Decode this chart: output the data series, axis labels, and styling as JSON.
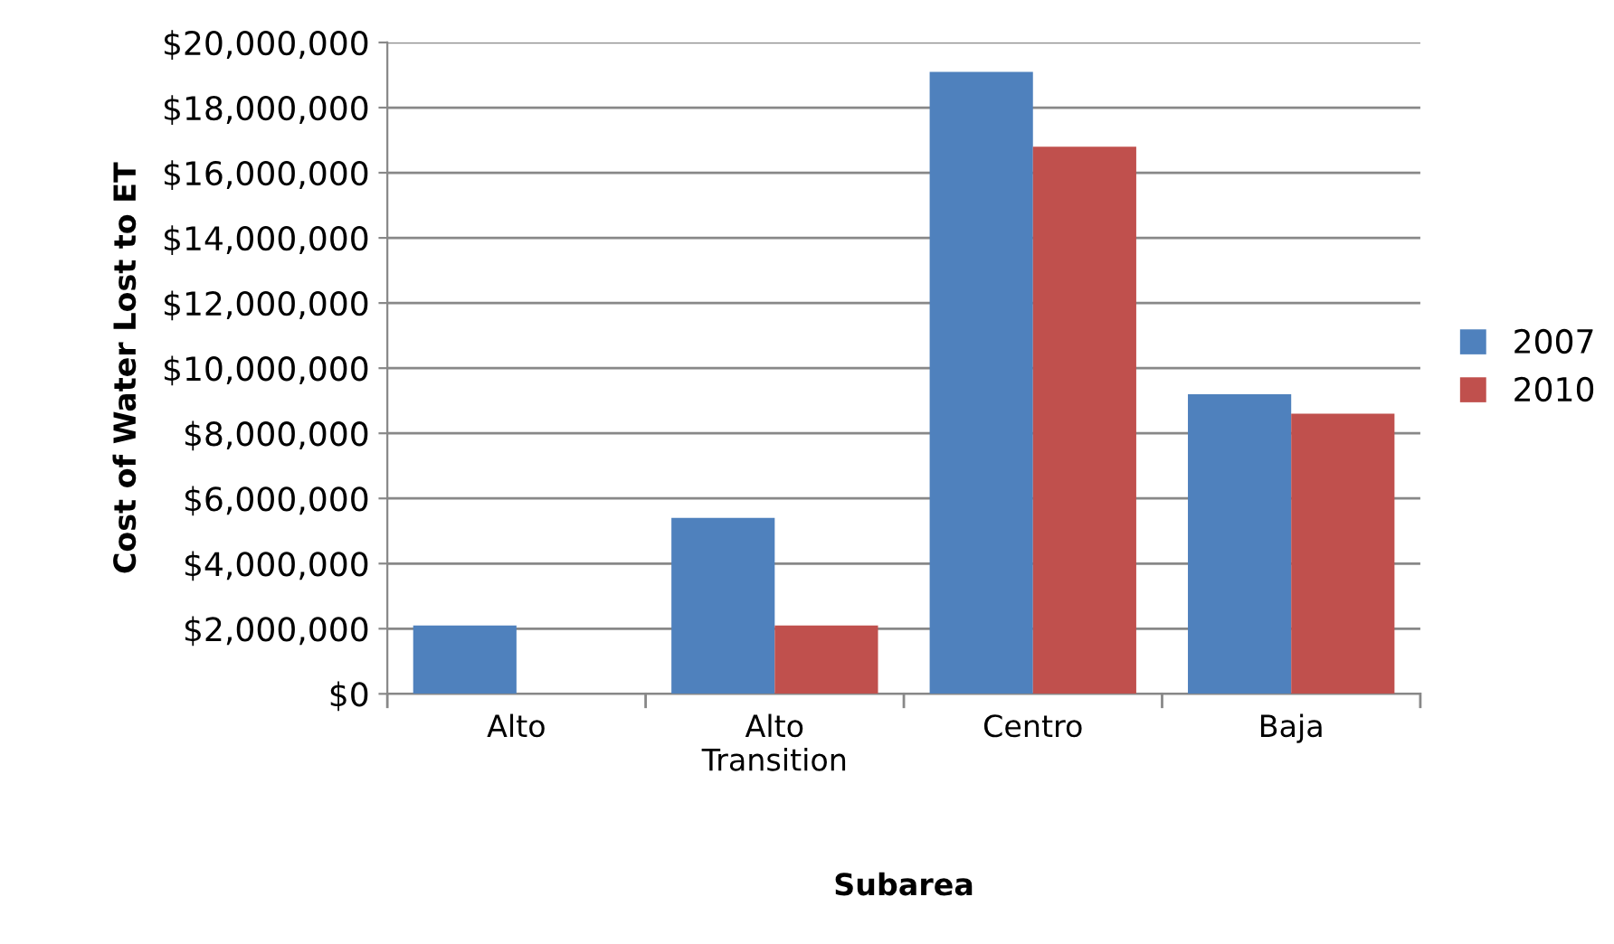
{
  "chart_data": {
    "type": "bar",
    "xlabel": "Subarea",
    "ylabel": "Cost of Water Lost to ET",
    "categories": [
      "Alto",
      "Alto\nTransition",
      "Centro",
      "Baja"
    ],
    "series": [
      {
        "name": "2007",
        "color": "#4f81bd",
        "values": [
          2100000,
          5400000,
          19100000,
          9200000
        ]
      },
      {
        "name": "2010",
        "color": "#c0504d",
        "values": [
          0,
          2100000,
          16800000,
          8600000
        ]
      }
    ],
    "ylim": [
      0,
      20000000
    ],
    "yticks": [
      {
        "value": 0,
        "label": "$0"
      },
      {
        "value": 2000000,
        "label": "$2,000,000"
      },
      {
        "value": 4000000,
        "label": "$4,000,000"
      },
      {
        "value": 6000000,
        "label": "$6,000,000"
      },
      {
        "value": 8000000,
        "label": "$8,000,000"
      },
      {
        "value": 10000000,
        "label": "$10,000,000"
      },
      {
        "value": 12000000,
        "label": "$12,000,000"
      },
      {
        "value": 14000000,
        "label": "$14,000,000"
      },
      {
        "value": 16000000,
        "label": "$16,000,000"
      },
      {
        "value": 18000000,
        "label": "$18,000,000"
      },
      {
        "value": 20000000,
        "label": "$20,000,000"
      }
    ],
    "grid": "y",
    "legend": "right"
  }
}
